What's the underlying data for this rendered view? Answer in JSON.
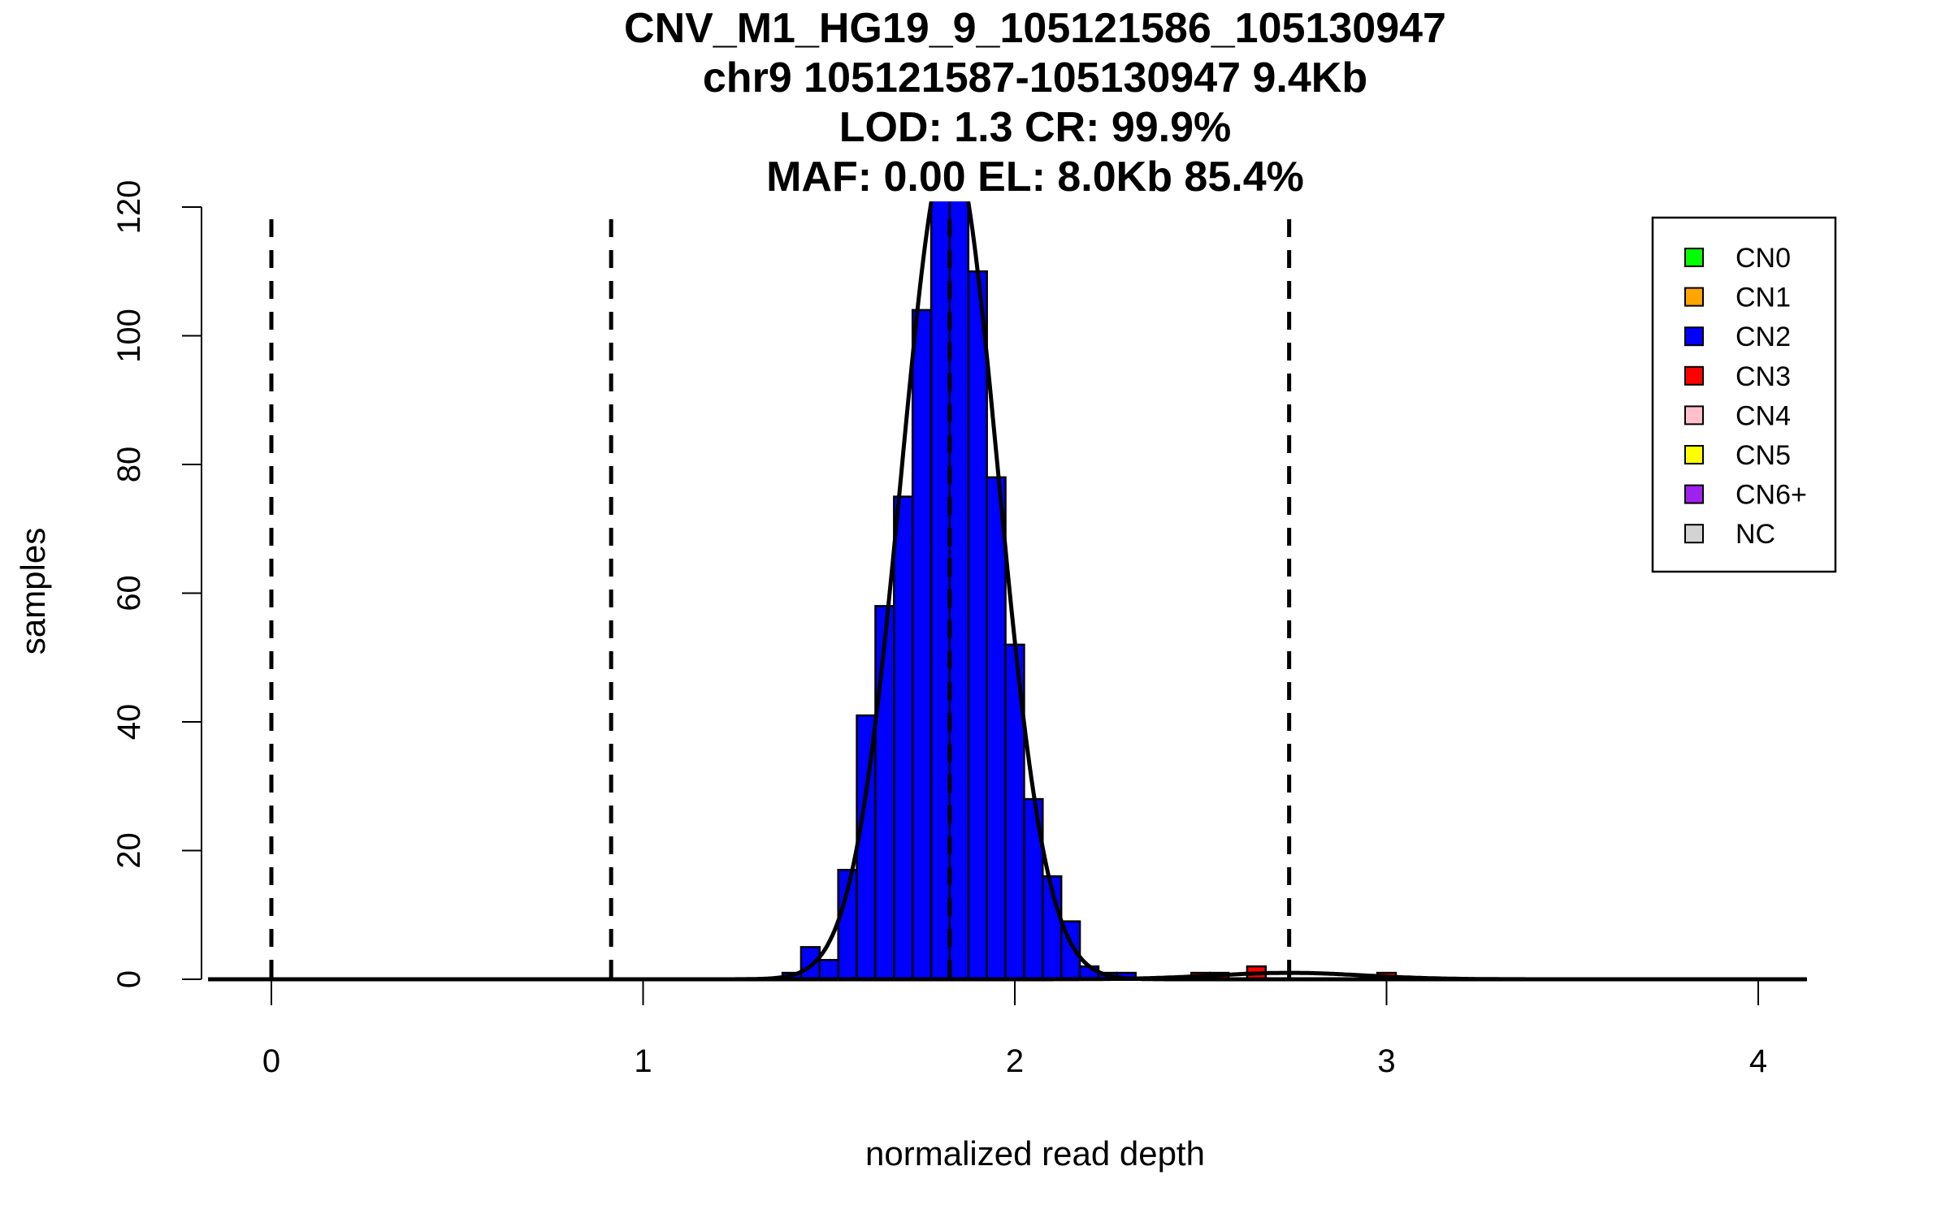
{
  "chart_data": {
    "type": "bar",
    "title": [
      "CNV_M1_HG19_9_105121586_105130947",
      "chr9 105121587-105130947 9.4Kb",
      "LOD: 1.3 CR: 99.9%",
      "MAF: 0.00 EL: 8.0Kb 85.4%"
    ],
    "xlabel": "normalized read depth",
    "ylabel": "samples",
    "xlim": [
      -0.17,
      4.13
    ],
    "ylim": [
      0,
      120
    ],
    "xticks": [
      "0",
      "1",
      "2",
      "3",
      "4"
    ],
    "yticks": [
      "0",
      "20",
      "40",
      "60",
      "80",
      "100",
      "120"
    ],
    "bin_width": 0.05,
    "bins": [
      {
        "center": 1.4,
        "count": 1,
        "cn": "CN2"
      },
      {
        "center": 1.45,
        "count": 5,
        "cn": "CN2"
      },
      {
        "center": 1.5,
        "count": 3,
        "cn": "CN2"
      },
      {
        "center": 1.55,
        "count": 17,
        "cn": "CN2"
      },
      {
        "center": 1.6,
        "count": 41,
        "cn": "CN2"
      },
      {
        "center": 1.65,
        "count": 58,
        "cn": "CN2"
      },
      {
        "center": 1.7,
        "count": 75,
        "cn": "CN2"
      },
      {
        "center": 1.75,
        "count": 104,
        "cn": "CN2"
      },
      {
        "center": 1.8,
        "count": 125,
        "cn": "CN2"
      },
      {
        "center": 1.85,
        "count": 122,
        "cn": "CN2"
      },
      {
        "center": 1.9,
        "count": 110,
        "cn": "CN2"
      },
      {
        "center": 1.95,
        "count": 78,
        "cn": "CN2"
      },
      {
        "center": 2.0,
        "count": 52,
        "cn": "CN2"
      },
      {
        "center": 2.05,
        "count": 28,
        "cn": "CN2"
      },
      {
        "center": 2.1,
        "count": 16,
        "cn": "CN2"
      },
      {
        "center": 2.15,
        "count": 9,
        "cn": "CN2"
      },
      {
        "center": 2.2,
        "count": 2,
        "cn": "CN2"
      },
      {
        "center": 2.25,
        "count": 1,
        "cn": "CN2"
      },
      {
        "center": 2.3,
        "count": 1,
        "cn": "CN2"
      },
      {
        "center": 2.5,
        "count": 1,
        "cn": "CN3"
      },
      {
        "center": 2.55,
        "count": 1,
        "cn": "CN3"
      },
      {
        "center": 2.65,
        "count": 2,
        "cn": "CN3"
      },
      {
        "center": 3.0,
        "count": 1,
        "cn": "CN3"
      }
    ],
    "thresholds": [
      0,
      0.914,
      1.825,
      2.738
    ],
    "fit_curves": [
      {
        "mean": 1.825,
        "sd": 0.13,
        "peak": 130
      },
      {
        "mean": 2.738,
        "sd": 0.2,
        "peak": 1
      }
    ],
    "legend": {
      "placement": "top-right",
      "entries": [
        {
          "label": "CN0",
          "color": "#00FF00"
        },
        {
          "label": "CN1",
          "color": "#FFA500"
        },
        {
          "label": "CN2",
          "color": "#0000FF"
        },
        {
          "label": "CN3",
          "color": "#FF0000"
        },
        {
          "label": "CN4",
          "color": "#FFC0CB"
        },
        {
          "label": "CN5",
          "color": "#FFFF00"
        },
        {
          "label": "CN6+",
          "color": "#A020F0"
        },
        {
          "label": "NC",
          "color": "#D3D3D3"
        }
      ]
    }
  }
}
